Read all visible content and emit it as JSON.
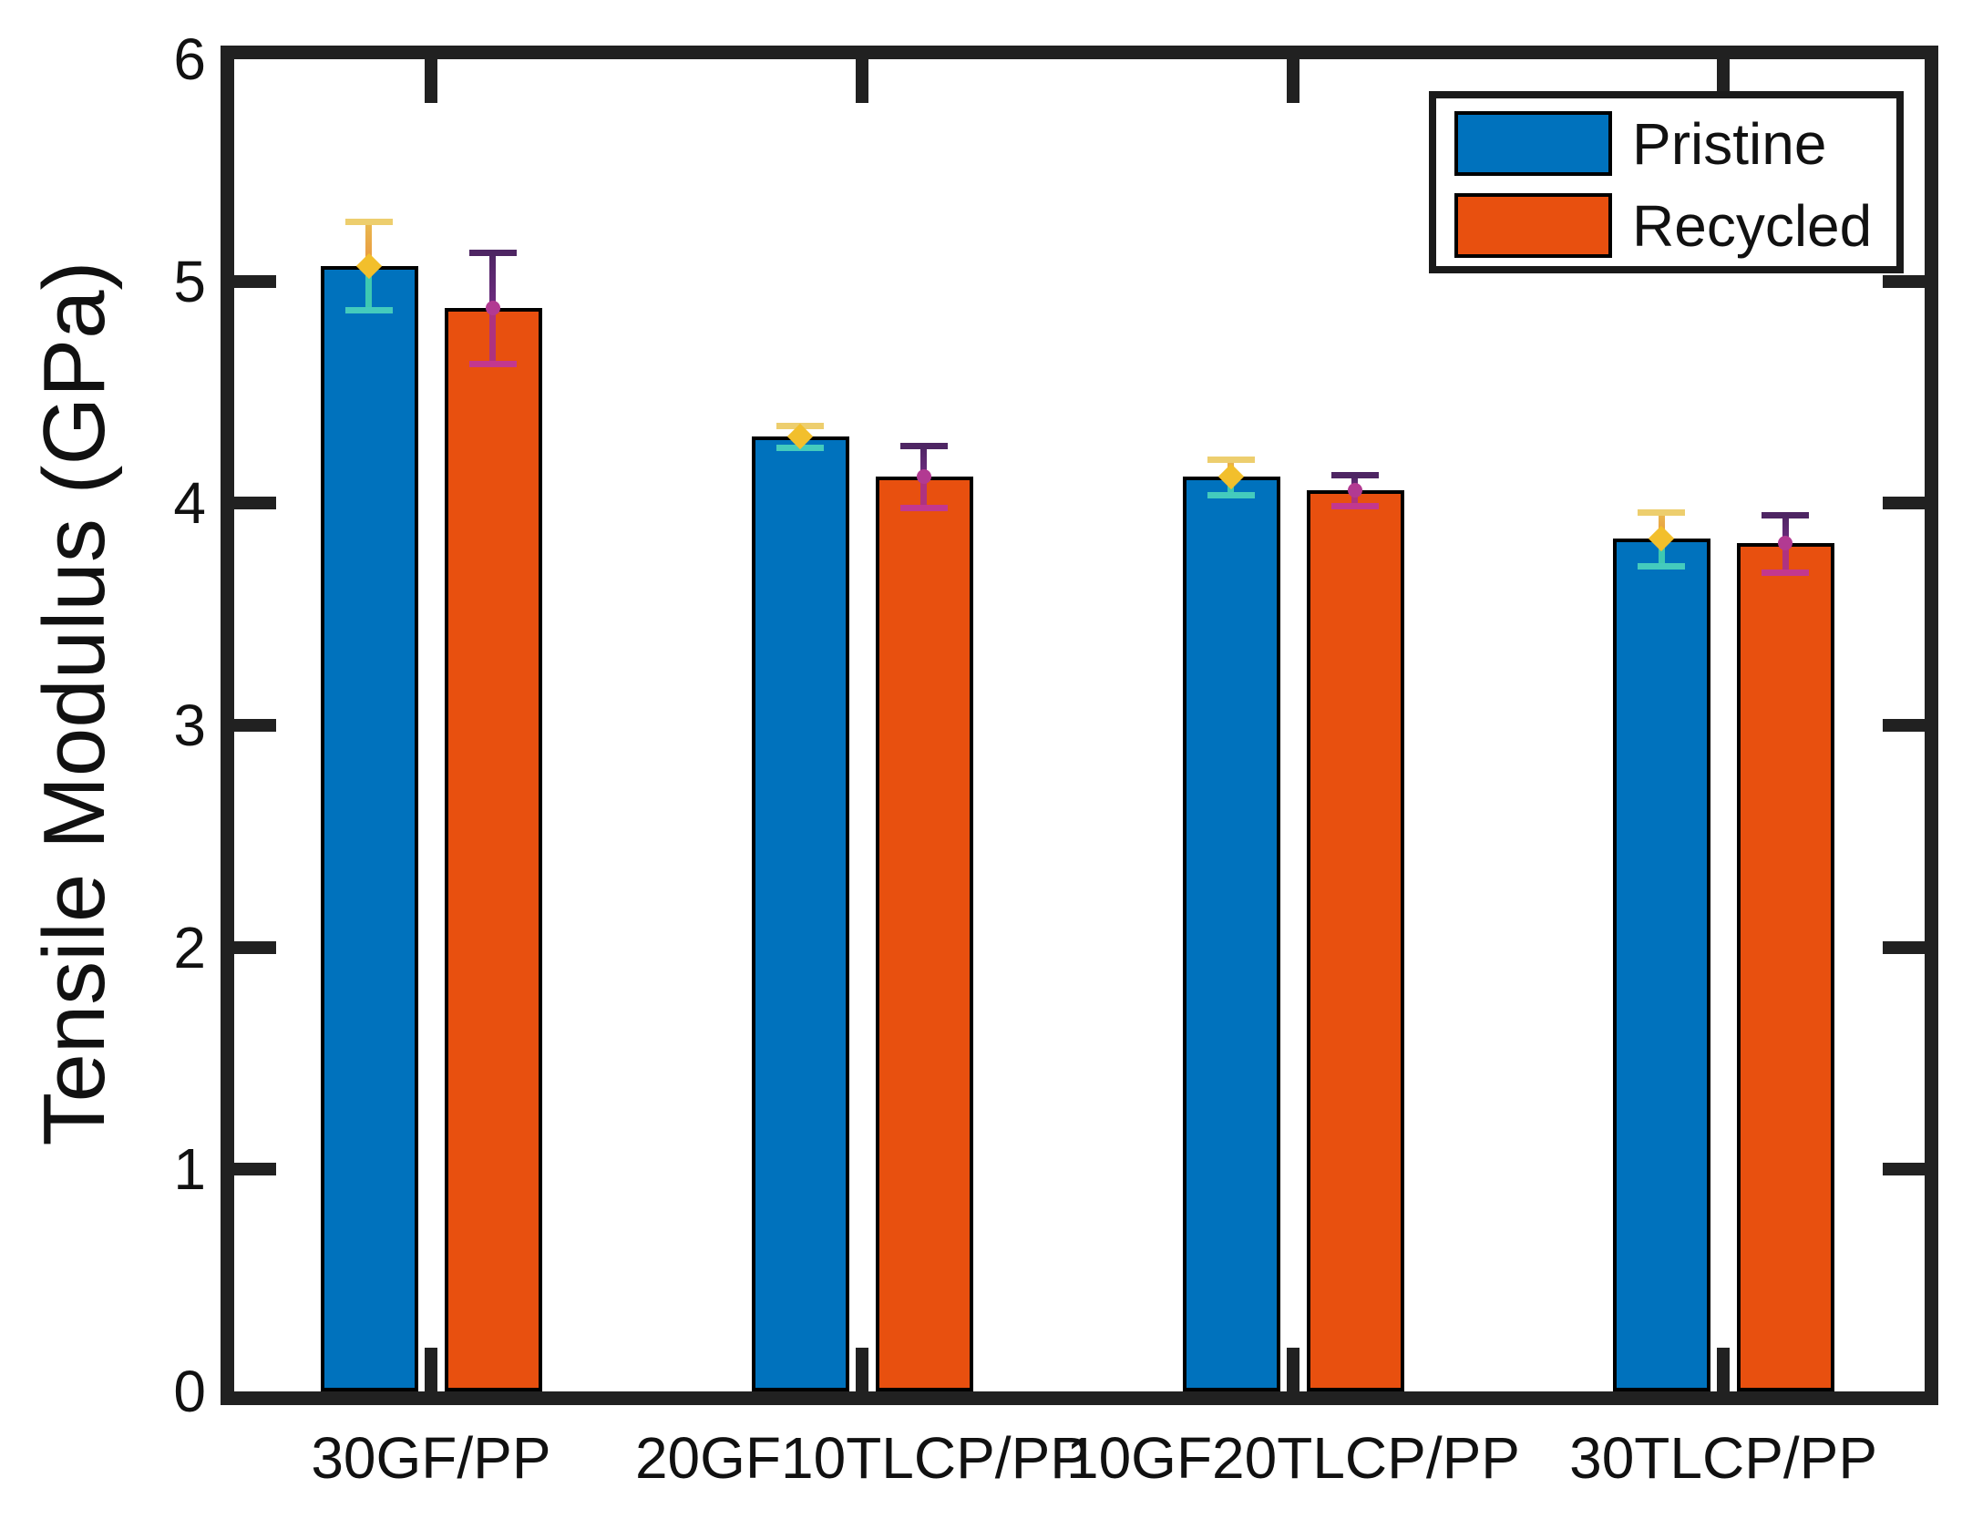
{
  "chart_data": {
    "type": "bar",
    "title": "",
    "xlabel": "",
    "ylabel": "Tensile Modulus (GPa)",
    "ylim": [
      0,
      6
    ],
    "ytick_labels": [
      "0",
      "1",
      "2",
      "3",
      "4",
      "5",
      "6"
    ],
    "grid": false,
    "legend_position": "top-right",
    "categories": [
      "30GF/PP",
      "20GF10TLCP/PP",
      "10GF20TLCP/PP",
      "30TLCP/PP"
    ],
    "series": [
      {
        "name": "Pristine",
        "color": "#0072BD",
        "values": [
          5.07,
          4.3,
          4.12,
          3.84
        ],
        "errors": [
          0.2,
          0.05,
          0.08,
          0.12
        ],
        "error_style": {
          "cap_top": "#EDCE6E",
          "stem_top_from": "#E9BA4F",
          "stem_top_to": "#E9953E",
          "marker": "#F2BF2C",
          "marker_shape": "diamond",
          "stem_bottom": "#3EC8B2",
          "cap_bottom": "#44CBBD"
        }
      },
      {
        "name": "Recycled",
        "color": "#E8500F",
        "values": [
          4.88,
          4.12,
          4.06,
          3.82
        ],
        "errors": [
          0.25,
          0.14,
          0.07,
          0.13
        ],
        "error_style": {
          "cap_top": "#4E2563",
          "stem_top_from": "#4E2563",
          "stem_top_to": "#6E2B80",
          "marker": "#B23A92",
          "marker_shape": "circle",
          "stem_bottom": "#AE3380",
          "cap_bottom": "#C2388F"
        }
      }
    ]
  }
}
